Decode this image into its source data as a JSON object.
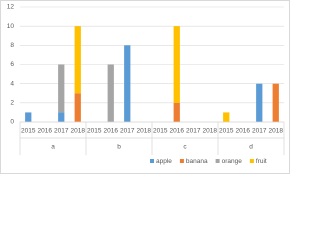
{
  "chart_data": {
    "type": "bar",
    "stacked": true,
    "categories": [
      "2015",
      "2016",
      "2017",
      "2018",
      "2015",
      "2016",
      "2017",
      "2018",
      "2015",
      "2016",
      "2017",
      "2018",
      "2015",
      "2016",
      "2017",
      "2018"
    ],
    "groups": [
      "a",
      "b",
      "c",
      "d"
    ],
    "series": [
      {
        "name": "apple",
        "color": "#5b9bd5",
        "values": [
          1,
          null,
          1,
          null,
          null,
          null,
          8,
          null,
          null,
          null,
          null,
          null,
          null,
          null,
          4,
          null
        ]
      },
      {
        "name": "banana",
        "color": "#ed7d31",
        "values": [
          null,
          null,
          null,
          3,
          null,
          null,
          null,
          null,
          null,
          2,
          null,
          null,
          null,
          null,
          null,
          4
        ]
      },
      {
        "name": "orange",
        "color": "#a5a5a5",
        "values": [
          null,
          null,
          5,
          null,
          null,
          6,
          null,
          null,
          null,
          null,
          null,
          null,
          null,
          null,
          null,
          null
        ]
      },
      {
        "name": "fruit",
        "color": "#ffc000",
        "values": [
          null,
          null,
          null,
          7,
          null,
          null,
          null,
          null,
          null,
          8,
          null,
          null,
          1,
          null,
          null,
          null
        ]
      }
    ],
    "ylim": [
      0,
      12
    ],
    "yticks": [
      0,
      2,
      4,
      6,
      8,
      10,
      12
    ],
    "grid": true,
    "legend": "bottom"
  }
}
